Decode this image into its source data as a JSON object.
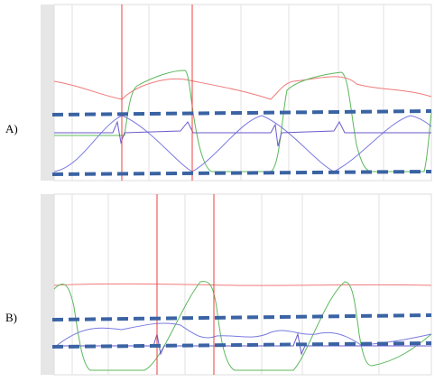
{
  "panels": [
    {
      "label": "A)"
    },
    {
      "label": "B)"
    }
  ]
}
